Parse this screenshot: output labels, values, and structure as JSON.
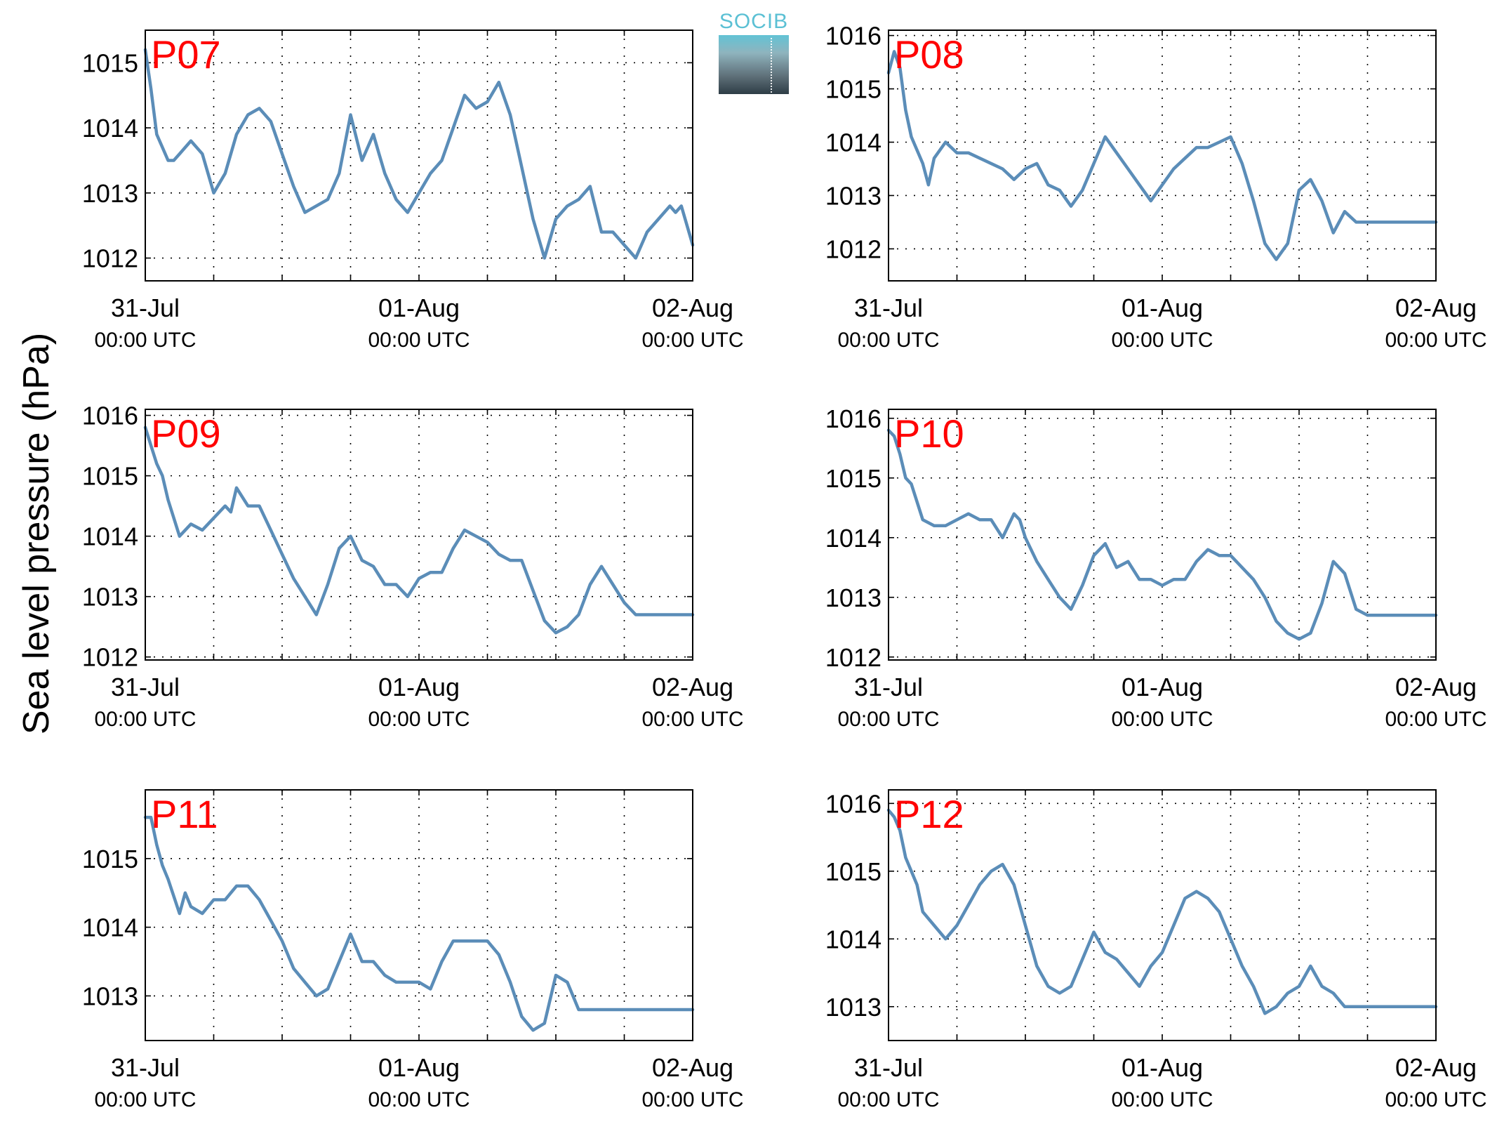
{
  "figure": {
    "ylabel": "Sea level pressure (hPa)",
    "logo_text": "SOCIB"
  },
  "chart_data": [
    {
      "type": "line",
      "title": "P07",
      "xlabel": "",
      "ylabel": "Sea level pressure (hPa)",
      "xlim": [
        0,
        48
      ],
      "ylim": [
        1011.65,
        1015.5
      ],
      "yticks": [
        1012,
        1013,
        1014,
        1015
      ],
      "xticks": [
        0,
        24,
        48
      ],
      "xtick_labels": [
        [
          "31-Jul",
          "00:00 UTC"
        ],
        [
          "01-Aug",
          "00:00 UTC"
        ],
        [
          "02-Aug",
          "00:00 UTC"
        ]
      ],
      "grid": true,
      "color": "#5b8db8",
      "series": [
        {
          "x": [
            0,
            0.5,
            1,
            1.5,
            2,
            2.5,
            3,
            4,
            5,
            6,
            7,
            8,
            9,
            10,
            11,
            12,
            13,
            14,
            16,
            17,
            18,
            19,
            20,
            20.5,
            21,
            22,
            23,
            24,
            25,
            26,
            27,
            28,
            29,
            30,
            31,
            32,
            33,
            34,
            35,
            36,
            37,
            38,
            39,
            40,
            41,
            42,
            43,
            44,
            45,
            46,
            46.5,
            47,
            48
          ],
          "y": [
            1015.2,
            1014.6,
            1013.9,
            1013.7,
            1013.5,
            1013.5,
            1013.6,
            1013.8,
            1013.6,
            1013.0,
            1013.3,
            1013.9,
            1014.2,
            1014.3,
            1014.1,
            1013.6,
            1013.1,
            1012.7,
            1012.9,
            1013.3,
            1014.2,
            1013.5,
            1013.9,
            1013.6,
            1013.3,
            1012.9,
            1012.7,
            1013.0,
            1013.3,
            1013.5,
            1014.0,
            1014.5,
            1014.3,
            1014.4,
            1014.7,
            1014.2,
            1013.4,
            1012.6,
            1012.0,
            1012.6,
            1012.8,
            1012.9,
            1013.1,
            1012.4,
            1012.4,
            1012.2,
            1012.0,
            1012.4,
            1012.6,
            1012.8,
            1012.7,
            1012.8,
            1012.2
          ]
        }
      ]
    },
    {
      "type": "line",
      "title": "P08",
      "xlabel": "",
      "ylabel": "Sea level pressure (hPa)",
      "xlim": [
        0,
        48
      ],
      "ylim": [
        1011.4,
        1016.1
      ],
      "yticks": [
        1012,
        1013,
        1014,
        1015,
        1016
      ],
      "xticks": [
        0,
        24,
        48
      ],
      "xtick_labels": [
        [
          "31-Jul",
          "00:00 UTC"
        ],
        [
          "01-Aug",
          "00:00 UTC"
        ],
        [
          "02-Aug",
          "00:00 UTC"
        ]
      ],
      "grid": true,
      "color": "#5b8db8",
      "series": [
        {
          "x": [
            0,
            0.5,
            1,
            1.5,
            2,
            3,
            3.5,
            4,
            5,
            6,
            7,
            8,
            9,
            10,
            11,
            12,
            13,
            14,
            15,
            16,
            17,
            18,
            19,
            20,
            21,
            22,
            23,
            24,
            25,
            26,
            27,
            28,
            29,
            30,
            31,
            32,
            33,
            34,
            35,
            36,
            37,
            38,
            39,
            40,
            41,
            42,
            43,
            44,
            45,
            46,
            47,
            48
          ],
          "y": [
            1015.3,
            1015.7,
            1015.4,
            1014.6,
            1014.1,
            1013.6,
            1013.2,
            1013.7,
            1014.0,
            1013.8,
            1013.8,
            1013.7,
            1013.6,
            1013.5,
            1013.3,
            1013.5,
            1013.6,
            1013.2,
            1013.1,
            1012.8,
            1013.1,
            1013.6,
            1014.1,
            1013.8,
            1013.5,
            1013.2,
            1012.9,
            1013.2,
            1013.5,
            1013.7,
            1013.9,
            1013.9,
            1014.0,
            1014.1,
            1013.6,
            1012.9,
            1012.1,
            1011.8,
            1012.1,
            1013.1,
            1013.3,
            1012.9,
            1012.3,
            1012.7,
            1012.5,
            1012.5,
            1012.5,
            1012.5,
            1012.5,
            1012.5,
            1012.5,
            1012.5
          ]
        }
      ]
    },
    {
      "type": "line",
      "title": "P09",
      "xlabel": "",
      "ylabel": "Sea level pressure (hPa)",
      "xlim": [
        0,
        48
      ],
      "ylim": [
        1011.95,
        1016.1
      ],
      "yticks": [
        1012,
        1013,
        1014,
        1015,
        1016
      ],
      "xticks": [
        0,
        24,
        48
      ],
      "xtick_labels": [
        [
          "31-Jul",
          "00:00 UTC"
        ],
        [
          "01-Aug",
          "00:00 UTC"
        ],
        [
          "02-Aug",
          "00:00 UTC"
        ]
      ],
      "grid": true,
      "color": "#5b8db8",
      "series": [
        {
          "x": [
            0,
            0.5,
            1,
            1.5,
            2,
            3,
            4,
            5,
            6,
            7,
            7.5,
            8,
            9,
            10,
            11,
            12,
            13,
            14,
            15,
            16,
            17,
            18,
            19,
            20,
            21,
            22,
            23,
            24,
            25,
            26,
            27,
            28,
            29,
            30,
            31,
            32,
            33,
            34,
            35,
            36,
            37,
            38,
            39,
            40,
            41,
            42,
            43,
            44,
            45,
            46,
            47,
            48
          ],
          "y": [
            1015.8,
            1015.5,
            1015.2,
            1015.0,
            1014.6,
            1014.0,
            1014.2,
            1014.1,
            1014.3,
            1014.5,
            1014.4,
            1014.8,
            1014.5,
            1014.5,
            1014.1,
            1013.7,
            1013.3,
            1013.0,
            1012.7,
            1013.2,
            1013.8,
            1014.0,
            1013.6,
            1013.5,
            1013.2,
            1013.2,
            1013.0,
            1013.3,
            1013.4,
            1013.4,
            1013.8,
            1014.1,
            1014.0,
            1013.9,
            1013.7,
            1013.6,
            1013.6,
            1013.1,
            1012.6,
            1012.4,
            1012.5,
            1012.7,
            1013.2,
            1013.5,
            1013.2,
            1012.9,
            1012.7,
            1012.7,
            1012.7,
            1012.7,
            1012.7,
            1012.7
          ]
        }
      ]
    },
    {
      "type": "line",
      "title": "P10",
      "xlabel": "",
      "ylabel": "Sea level pressure (hPa)",
      "xlim": [
        0,
        48
      ],
      "ylim": [
        1011.95,
        1016.15
      ],
      "yticks": [
        1012,
        1013,
        1014,
        1015,
        1016
      ],
      "xticks": [
        0,
        24,
        48
      ],
      "xtick_labels": [
        [
          "31-Jul",
          "00:00 UTC"
        ],
        [
          "01-Aug",
          "00:00 UTC"
        ],
        [
          "02-Aug",
          "00:00 UTC"
        ]
      ],
      "grid": true,
      "color": "#5b8db8",
      "series": [
        {
          "x": [
            0,
            0.5,
            1,
            1.5,
            2,
            3,
            4,
            5,
            6,
            7,
            8,
            9,
            10,
            11,
            11.5,
            12,
            13,
            14,
            15,
            16,
            17,
            18,
            19,
            20,
            21,
            22,
            23,
            24,
            25,
            26,
            27,
            28,
            29,
            30,
            31,
            32,
            33,
            34,
            35,
            36,
            37,
            38,
            39,
            40,
            41,
            42,
            43,
            44,
            45,
            46,
            47,
            48
          ],
          "y": [
            1015.8,
            1015.7,
            1015.4,
            1015.0,
            1014.9,
            1014.3,
            1014.2,
            1014.2,
            1014.3,
            1014.4,
            1014.3,
            1014.3,
            1014.0,
            1014.4,
            1014.3,
            1014.0,
            1013.6,
            1013.3,
            1013.0,
            1012.8,
            1013.2,
            1013.7,
            1013.9,
            1013.5,
            1013.6,
            1013.3,
            1013.3,
            1013.2,
            1013.3,
            1013.3,
            1013.6,
            1013.8,
            1013.7,
            1013.7,
            1013.5,
            1013.3,
            1013.0,
            1012.6,
            1012.4,
            1012.3,
            1012.4,
            1012.9,
            1013.6,
            1013.4,
            1012.8,
            1012.7,
            1012.7,
            1012.7,
            1012.7,
            1012.7,
            1012.7,
            1012.7
          ]
        }
      ]
    },
    {
      "type": "line",
      "title": "P11",
      "xlabel": "",
      "ylabel": "Sea level pressure (hPa)",
      "xlim": [
        0,
        48
      ],
      "ylim": [
        1012.35,
        1016.0
      ],
      "yticks": [
        1013,
        1014,
        1015
      ],
      "xticks": [
        0,
        24,
        48
      ],
      "xtick_labels": [
        [
          "31-Jul",
          "00:00 UTC"
        ],
        [
          "01-Aug",
          "00:00 UTC"
        ],
        [
          "02-Aug",
          "00:00 UTC"
        ]
      ],
      "grid": true,
      "color": "#5b8db8",
      "series": [
        {
          "x": [
            0,
            0.5,
            1,
            1.5,
            2,
            3,
            3.5,
            4,
            5,
            6,
            7,
            8,
            9,
            10,
            11,
            12,
            13,
            14,
            15,
            16,
            17,
            18,
            19,
            20,
            21,
            22,
            23,
            24,
            25,
            26,
            27,
            28,
            29,
            30,
            31,
            32,
            33,
            34,
            35,
            36,
            37,
            38,
            39,
            40,
            41,
            42,
            43,
            44,
            45,
            46,
            47,
            48
          ],
          "y": [
            1015.6,
            1015.6,
            1015.2,
            1014.9,
            1014.7,
            1014.2,
            1014.5,
            1014.3,
            1014.2,
            1014.4,
            1014.4,
            1014.6,
            1014.6,
            1014.4,
            1014.1,
            1013.8,
            1013.4,
            1013.2,
            1013.0,
            1013.1,
            1013.5,
            1013.9,
            1013.5,
            1013.5,
            1013.3,
            1013.2,
            1013.2,
            1013.2,
            1013.1,
            1013.5,
            1013.8,
            1013.8,
            1013.8,
            1013.8,
            1013.6,
            1013.2,
            1012.7,
            1012.5,
            1012.6,
            1013.3,
            1013.2,
            1012.8,
            1012.8,
            1012.8,
            1012.8,
            1012.8,
            1012.8,
            1012.8,
            1012.8,
            1012.8,
            1012.8,
            1012.8
          ]
        }
      ]
    },
    {
      "type": "line",
      "title": "P12",
      "xlabel": "",
      "ylabel": "Sea level pressure (hPa)",
      "xlim": [
        0,
        48
      ],
      "ylim": [
        1012.5,
        1016.2
      ],
      "yticks": [
        1013,
        1014,
        1015,
        1016
      ],
      "xticks": [
        0,
        24,
        48
      ],
      "xtick_labels": [
        [
          "31-Jul",
          "00:00 UTC"
        ],
        [
          "01-Aug",
          "00:00 UTC"
        ],
        [
          "02-Aug",
          "00:00 UTC"
        ]
      ],
      "grid": true,
      "color": "#5b8db8",
      "series": [
        {
          "x": [
            0,
            0.5,
            1,
            1.5,
            2,
            2.5,
            3,
            4,
            5,
            6,
            7,
            8,
            9,
            10,
            11,
            12,
            13,
            14,
            15,
            16,
            17,
            18,
            19,
            20,
            21,
            22,
            23,
            24,
            25,
            26,
            27,
            28,
            29,
            30,
            31,
            32,
            33,
            34,
            35,
            36,
            37,
            38,
            39,
            40,
            41,
            42,
            43,
            44,
            45,
            46,
            47,
            48
          ],
          "y": [
            1015.9,
            1015.8,
            1015.6,
            1015.2,
            1015.0,
            1014.8,
            1014.4,
            1014.2,
            1014.0,
            1014.2,
            1014.5,
            1014.8,
            1015.0,
            1015.1,
            1014.8,
            1014.2,
            1013.6,
            1013.3,
            1013.2,
            1013.3,
            1013.7,
            1014.1,
            1013.8,
            1013.7,
            1013.5,
            1013.3,
            1013.6,
            1013.8,
            1014.2,
            1014.6,
            1014.7,
            1014.6,
            1014.4,
            1014.0,
            1013.6,
            1013.3,
            1012.9,
            1013.0,
            1013.2,
            1013.3,
            1013.6,
            1013.3,
            1013.2,
            1013.0,
            1013.0,
            1013.0,
            1013.0,
            1013.0,
            1013.0,
            1013.0,
            1013.0,
            1013.0
          ]
        }
      ]
    }
  ]
}
